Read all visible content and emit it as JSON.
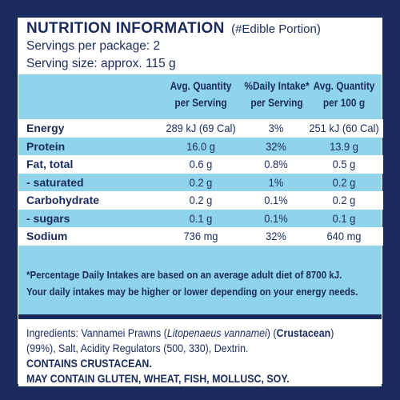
{
  "header": {
    "title": "NUTRITION INFORMATION",
    "title_note": "(#Edible Portion)",
    "servings_per_package": "Servings per package: 2",
    "serving_size": "Serving size: approx. 115 g"
  },
  "table": {
    "columns": [
      {
        "line1": "Avg. Quantity",
        "line2": "per Serving"
      },
      {
        "line1": "%Daily Intake*",
        "line2": "per Serving"
      },
      {
        "line1": "Avg. Quantity",
        "line2": "per 100 g"
      }
    ],
    "rows": [
      {
        "name": "Energy",
        "per_serving": "289 kJ (69 Cal)",
        "daily_intake": "3%",
        "per_100g": "251 kJ (60 Cal)"
      },
      {
        "name": "Protein",
        "per_serving": "16.0 g",
        "daily_intake": "32%",
        "per_100g": "13.9 g"
      },
      {
        "name": "Fat, total",
        "per_serving": "0.6 g",
        "daily_intake": "0.8%",
        "per_100g": "0.5 g"
      },
      {
        "name": "- saturated",
        "per_serving": "0.2 g",
        "daily_intake": "1%",
        "per_100g": "0.2 g"
      },
      {
        "name": "Carbohydrate",
        "per_serving": "0.2 g",
        "daily_intake": "0.1%",
        "per_100g": "0.2 g"
      },
      {
        "name": "- sugars",
        "per_serving": "0.1 g",
        "daily_intake": "0.1%",
        "per_100g": "0.1 g"
      },
      {
        "name": "Sodium",
        "per_serving": "736 mg",
        "daily_intake": "32%",
        "per_100g": "640 mg"
      }
    ],
    "footnote_line1": "*Percentage Daily Intakes are based on an average adult diet of 8700 kJ.",
    "footnote_line2": "Your daily intakes may be higher or lower depending on your energy needs."
  },
  "ingredients": {
    "prefix": "Ingredients: Vannamei Prawns (",
    "species": "Litopenaeus vannamei",
    "mid": ") (",
    "allergen": "Crustacean",
    "close": ")",
    "line2": "(99%), Salt, Acidity Regulators (500, 330), Dextrin.",
    "contains": "CONTAINS CRUSTACEAN.",
    "may_contain": "MAY CONTAIN GLUTEN, WHEAT, FISH, MOLLUSC, SOY."
  },
  "colors": {
    "navy": "#1b2a5c",
    "light_blue": "#8fd4ea",
    "white": "#ffffff"
  }
}
